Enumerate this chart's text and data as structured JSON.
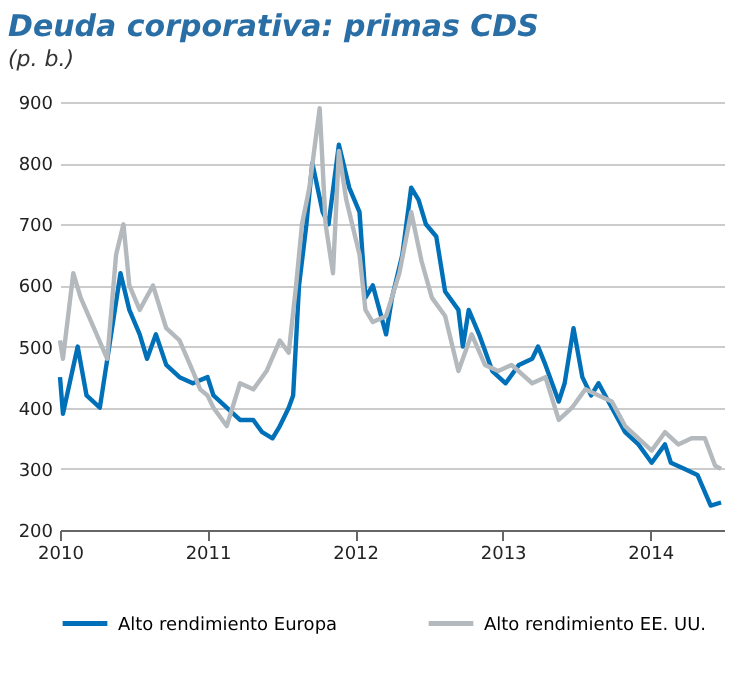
{
  "chart_data": {
    "type": "line",
    "title": "Deuda corporativa: primas CDS",
    "subtitle": "(p. b.)",
    "xlim": [
      2010,
      2014.5
    ],
    "xticks": [
      2010,
      2011,
      2012,
      2013,
      2014
    ],
    "ylim": [
      200,
      900
    ],
    "yticks": [
      200,
      300,
      400,
      500,
      600,
      700,
      800,
      900
    ],
    "grid": "y",
    "legend": "bottom",
    "series": [
      {
        "name": "Alto rendimiento Europa",
        "color": "#0070b8",
        "x": [
          2010.0,
          2010.02,
          2010.12,
          2010.18,
          2010.27,
          2010.41,
          2010.47,
          2010.54,
          2010.59,
          2010.65,
          2010.72,
          2010.81,
          2010.9,
          2011.0,
          2011.04,
          2011.13,
          2011.22,
          2011.31,
          2011.37,
          2011.44,
          2011.49,
          2011.55,
          2011.58,
          2011.62,
          2011.67,
          2011.71,
          2011.78,
          2011.82,
          2011.89,
          2011.96,
          2012.03,
          2012.07,
          2012.12,
          2012.21,
          2012.25,
          2012.32,
          2012.38,
          2012.43,
          2012.48,
          2012.55,
          2012.61,
          2012.7,
          2012.73,
          2012.77,
          2012.84,
          2012.93,
          2013.02,
          2013.11,
          2013.2,
          2013.24,
          2013.29,
          2013.38,
          2013.42,
          2013.48,
          2013.54,
          2013.6,
          2013.65,
          2013.74,
          2013.83,
          2013.92,
          2014.01,
          2014.1,
          2014.14,
          2014.23,
          2014.32,
          2014.41,
          2014.48
        ],
        "values": [
          450,
          390,
          500,
          420,
          400,
          620,
          560,
          520,
          480,
          520,
          470,
          450,
          440,
          450,
          420,
          400,
          380,
          380,
          360,
          350,
          370,
          400,
          420,
          600,
          700,
          800,
          720,
          700,
          830,
          760,
          720,
          580,
          600,
          520,
          580,
          650,
          760,
          740,
          700,
          680,
          590,
          560,
          500,
          560,
          520,
          460,
          440,
          470,
          480,
          500,
          470,
          410,
          440,
          530,
          450,
          420,
          440,
          400,
          360,
          340,
          310,
          340,
          310,
          300,
          290,
          240,
          245
        ]
      },
      {
        "name": "Alto rendimiento EE. UU.",
        "color": "#b3b9bd",
        "x": [
          2010.0,
          2010.02,
          2010.09,
          2010.14,
          2010.23,
          2010.32,
          2010.38,
          2010.43,
          2010.47,
          2010.54,
          2010.63,
          2010.72,
          2010.81,
          2010.9,
          2010.95,
          2011.0,
          2011.04,
          2011.13,
          2011.22,
          2011.31,
          2011.4,
          2011.49,
          2011.55,
          2011.6,
          2011.64,
          2011.69,
          2011.76,
          2011.8,
          2011.85,
          2011.89,
          2011.94,
          2012.03,
          2012.07,
          2012.12,
          2012.21,
          2012.3,
          2012.38,
          2012.45,
          2012.52,
          2012.61,
          2012.7,
          2012.79,
          2012.88,
          2012.97,
          2013.06,
          2013.2,
          2013.29,
          2013.38,
          2013.47,
          2013.56,
          2013.65,
          2013.74,
          2013.83,
          2013.92,
          2014.01,
          2014.1,
          2014.19,
          2014.28,
          2014.37,
          2014.44,
          2014.48
        ],
        "values": [
          510,
          480,
          620,
          580,
          530,
          480,
          650,
          700,
          600,
          560,
          600,
          530,
          510,
          460,
          430,
          420,
          400,
          370,
          440,
          430,
          460,
          510,
          490,
          600,
          700,
          760,
          890,
          700,
          620,
          820,
          740,
          650,
          560,
          540,
          550,
          620,
          720,
          640,
          580,
          550,
          460,
          520,
          470,
          460,
          470,
          440,
          450,
          380,
          400,
          430,
          420,
          410,
          370,
          350,
          330,
          360,
          340,
          350,
          350,
          305,
          300
        ]
      }
    ]
  }
}
